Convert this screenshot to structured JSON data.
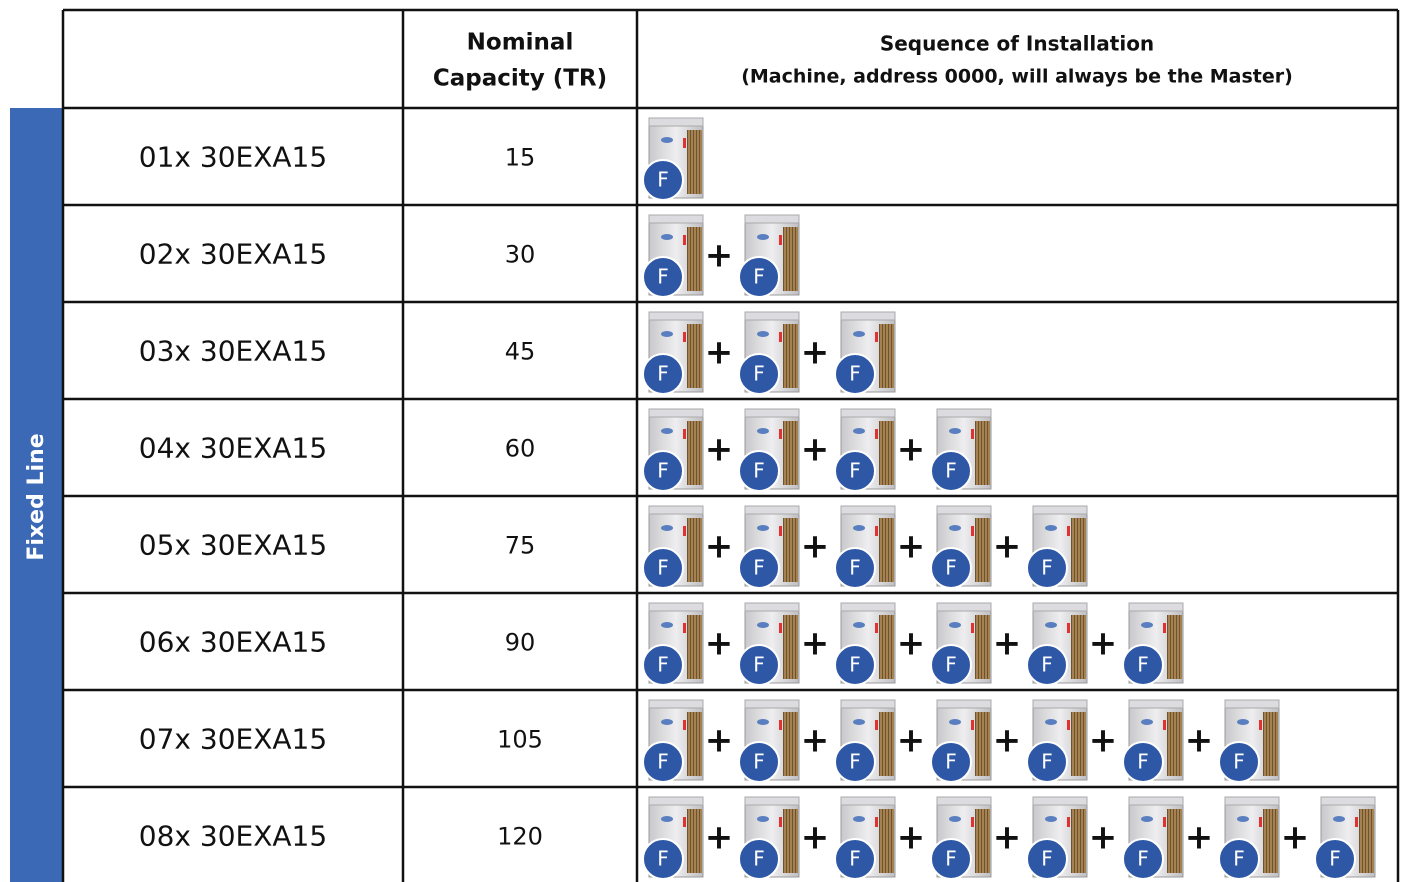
{
  "header": {
    "capacity": [
      "Nominal",
      "Capacity (TR)"
    ],
    "sequence": {
      "title": "Sequence of Installation",
      "note": "(Machine, address 0000, will always be the Master)"
    }
  },
  "side_label": "Fixed Line",
  "separator": "+",
  "rows": [
    {
      "model": "01x 30EXA15",
      "capacity": "15",
      "sequence": [
        "F"
      ]
    },
    {
      "model": "02x 30EXA15",
      "capacity": "30",
      "sequence": [
        "F",
        "F"
      ]
    },
    {
      "model": "03x 30EXA15",
      "capacity": "45",
      "sequence": [
        "F",
        "F",
        "F"
      ]
    },
    {
      "model": "04x 30EXA15",
      "capacity": "60",
      "sequence": [
        "F",
        "F",
        "F",
        "F"
      ]
    },
    {
      "model": "05x 30EXA15",
      "capacity": "75",
      "sequence": [
        "F",
        "F",
        "F",
        "F",
        "F"
      ]
    },
    {
      "model": "06x 30EXA15",
      "capacity": "90",
      "sequence": [
        "F",
        "F",
        "F",
        "F",
        "F",
        "F"
      ]
    },
    {
      "model": "07x 30EXA15",
      "capacity": "105",
      "sequence": [
        "F",
        "F",
        "F",
        "F",
        "F",
        "F",
        "F"
      ]
    },
    {
      "model": "08x 30EXA15",
      "capacity": "120",
      "sequence": [
        "F",
        "F",
        "F",
        "F",
        "F",
        "F",
        "F",
        "F"
      ]
    }
  ]
}
